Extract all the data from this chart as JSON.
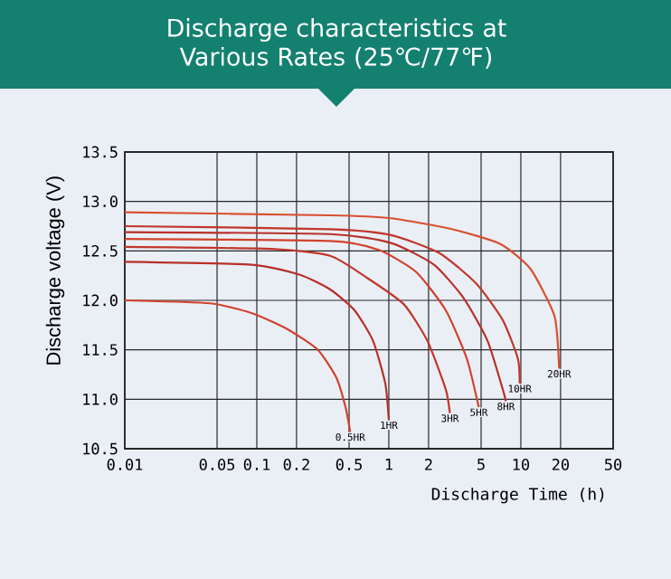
{
  "chart_data": {
    "type": "line",
    "title": "Discharge characteristics at Various Rates (25℃/77℉)",
    "xlabel": "Discharge Time (h)",
    "ylabel": "Discharge voltage (V)",
    "log": "x",
    "grid": true,
    "legend": false,
    "marker": "none",
    "line_style": "solid",
    "xlim": [
      0.01,
      50
    ],
    "ylim": [
      10.5,
      13.5
    ],
    "xticks": [
      0.01,
      0.05,
      0.1,
      0.2,
      0.5,
      1,
      2,
      5,
      10,
      20,
      50
    ],
    "yticks": [
      10.5,
      {
        "value": 11,
        "label": "11.0"
      },
      11.5,
      {
        "value": 12,
        "label": "12.0"
      },
      12.5,
      {
        "value": 13,
        "label": "13.0"
      },
      13.5
    ],
    "series": [
      {
        "name": "0.5HR",
        "color": "#d2412c",
        "x": [
          0.01,
          0.044,
          0.092,
          0.17,
          0.29,
          0.4,
          0.47,
          0.51
        ],
        "values": [
          12.0,
          11.97,
          11.87,
          11.71,
          11.5,
          11.22,
          10.92,
          10.67
        ]
      },
      {
        "name": "1HR",
        "color": "#b8302a",
        "x": [
          0.01,
          0.092,
          0.21,
          0.36,
          0.55,
          0.76,
          0.94,
          1.0
        ],
        "values": [
          12.39,
          12.36,
          12.26,
          12.11,
          11.9,
          11.59,
          11.16,
          10.79
        ]
      },
      {
        "name": "3HR",
        "color": "#c2362a",
        "x": [
          0.01,
          0.13,
          0.36,
          0.68,
          1.3,
          1.96,
          2.7,
          2.9
        ],
        "values": [
          12.54,
          12.52,
          12.45,
          12.23,
          11.96,
          11.59,
          11.1,
          10.86
        ]
      },
      {
        "name": "5HR",
        "color": "#d2412c",
        "x": [
          0.01,
          0.36,
          0.84,
          1.6,
          2.7,
          3.9,
          4.8
        ],
        "values": [
          12.62,
          12.6,
          12.51,
          12.29,
          11.9,
          11.41,
          10.92
        ]
      },
      {
        "name": "8HR",
        "color": "#b8302a",
        "x": [
          0.01,
          0.36,
          1.04,
          2.2,
          3.7,
          5.6,
          7.3,
          7.7
        ],
        "values": [
          12.69,
          12.67,
          12.58,
          12.36,
          12.02,
          11.59,
          11.1,
          10.98
        ]
      },
      {
        "name": "10HR",
        "color": "#c2362a",
        "x": [
          0.01,
          0.36,
          1.04,
          2.4,
          4.6,
          7.3,
          9.5,
          9.8
        ],
        "values": [
          12.75,
          12.72,
          12.66,
          12.48,
          12.17,
          11.8,
          11.41,
          11.16
        ]
      },
      {
        "name": "20HR",
        "color": "#d9502f",
        "x": [
          0.01,
          0.36,
          1.04,
          3.0,
          7.0,
          11.8,
          18.0,
          19.5
        ],
        "values": [
          12.89,
          12.86,
          12.83,
          12.72,
          12.57,
          12.32,
          11.84,
          11.31
        ]
      }
    ]
  }
}
